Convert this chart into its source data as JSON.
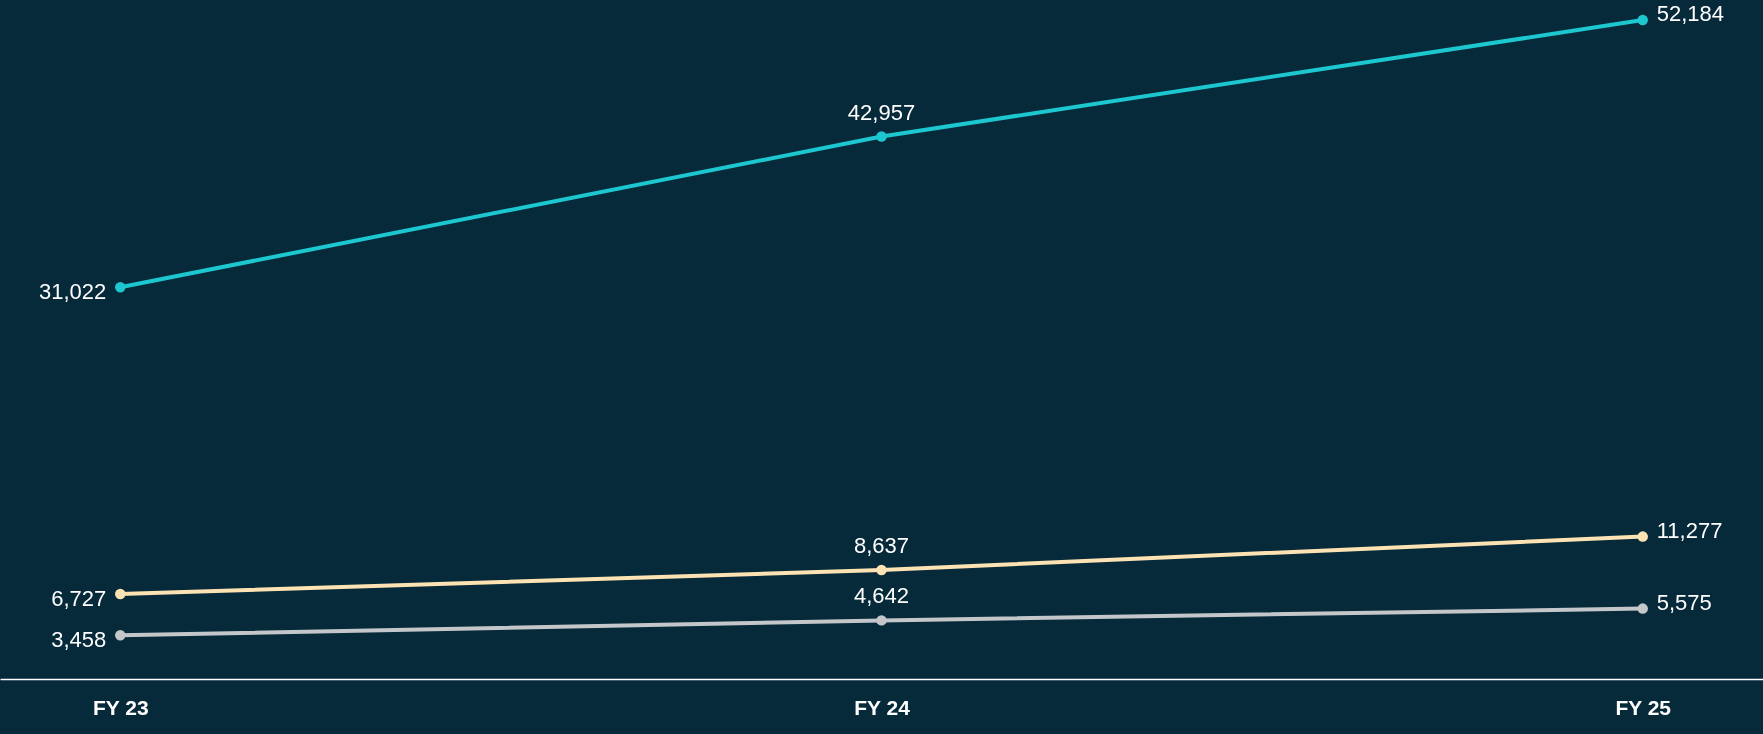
{
  "chart_data": {
    "type": "line",
    "categories": [
      "FY 23",
      "FY 24",
      "FY 25"
    ],
    "series": [
      {
        "color": "#1cc7d0",
        "values": [
          31022,
          42957,
          52184
        ],
        "value_labels": [
          "31,022",
          "42,957",
          "52,184"
        ]
      },
      {
        "color": "#fde3b3",
        "values": [
          6727,
          8637,
          11277
        ],
        "value_labels": [
          "6,727",
          "8,637",
          "11,277"
        ]
      },
      {
        "color": "#c4c7ca",
        "values": [
          3458,
          4642,
          5575
        ],
        "value_labels": [
          "3,458",
          "4,642",
          "5,575"
        ]
      }
    ],
    "marker": "circle",
    "line_style": "solid",
    "grid": false,
    "tick_labels": "x"
  }
}
